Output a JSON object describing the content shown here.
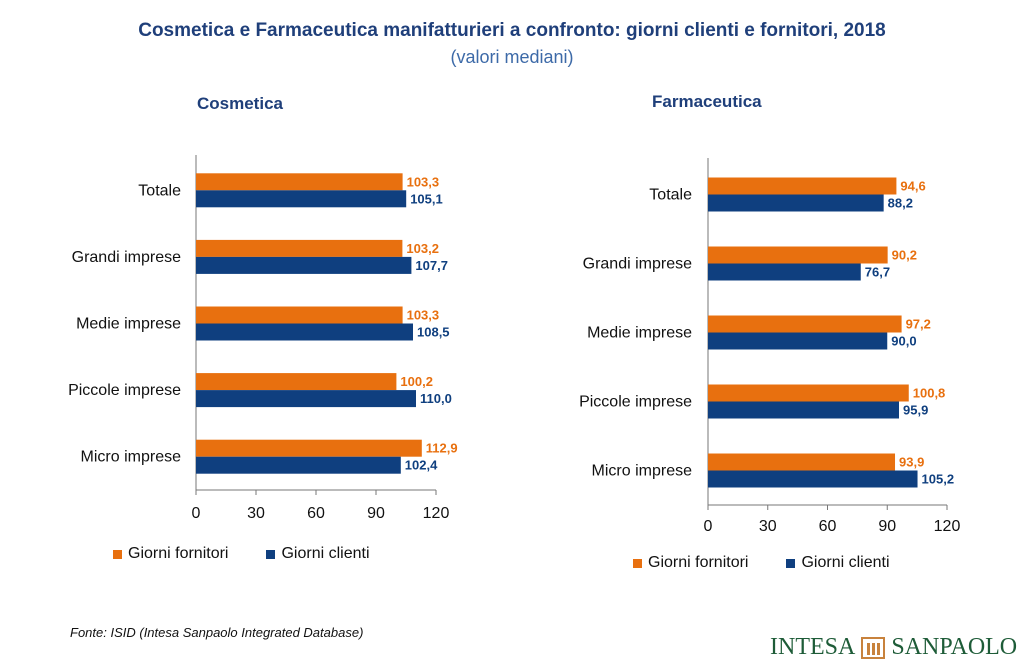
{
  "title": "Cosmetica e Farmaceutica manifatturieri a confronto: giorni clienti e fornitori, 2018",
  "subtitle": "(valori mediani)",
  "source": "Fonte: ISID (Intesa Sanpaolo Integrated Database)",
  "logo": {
    "left": "INTESA",
    "right": "SANPAOLO"
  },
  "colors": {
    "fornitori": "#e8700f",
    "clienti": "#0f3f7f",
    "axis": "#777777"
  },
  "chart_data": [
    {
      "type": "bar",
      "orientation": "horizontal",
      "title": "Cosmetica",
      "categories": [
        "Totale",
        "Grandi imprese",
        "Medie imprese",
        "Piccole imprese",
        "Micro imprese"
      ],
      "xlim": [
        0,
        120
      ],
      "ticks": [
        "0",
        "30",
        "60",
        "90",
        "120"
      ],
      "series": [
        {
          "name": "Giorni fornitori",
          "values": [
            103.3,
            103.2,
            103.3,
            100.2,
            112.9
          ],
          "labels": [
            "103,3",
            "103,2",
            "103,3",
            "100,2",
            "112,9"
          ]
        },
        {
          "name": "Giorni clienti",
          "values": [
            105.1,
            107.7,
            108.5,
            110.0,
            102.4
          ],
          "labels": [
            "105,1",
            "107,7",
            "108,5",
            "110,0",
            "102,4"
          ]
        }
      ],
      "legend": "bottom"
    },
    {
      "type": "bar",
      "orientation": "horizontal",
      "title": "Farmaceutica",
      "categories": [
        "Totale",
        "Grandi imprese",
        "Medie imprese",
        "Piccole imprese",
        "Micro imprese"
      ],
      "xlim": [
        0,
        120
      ],
      "ticks": [
        "0",
        "30",
        "60",
        "90",
        "120"
      ],
      "series": [
        {
          "name": "Giorni fornitori",
          "values": [
            94.6,
            90.2,
            97.2,
            100.8,
            93.9
          ],
          "labels": [
            "94,6",
            "90,2",
            "97,2",
            "100,8",
            "93,9"
          ]
        },
        {
          "name": "Giorni clienti",
          "values": [
            88.2,
            76.7,
            90.0,
            95.9,
            105.2
          ],
          "labels": [
            "88,2",
            "76,7",
            "90,0",
            "95,9",
            "105,2"
          ]
        }
      ],
      "legend": "bottom"
    }
  ]
}
